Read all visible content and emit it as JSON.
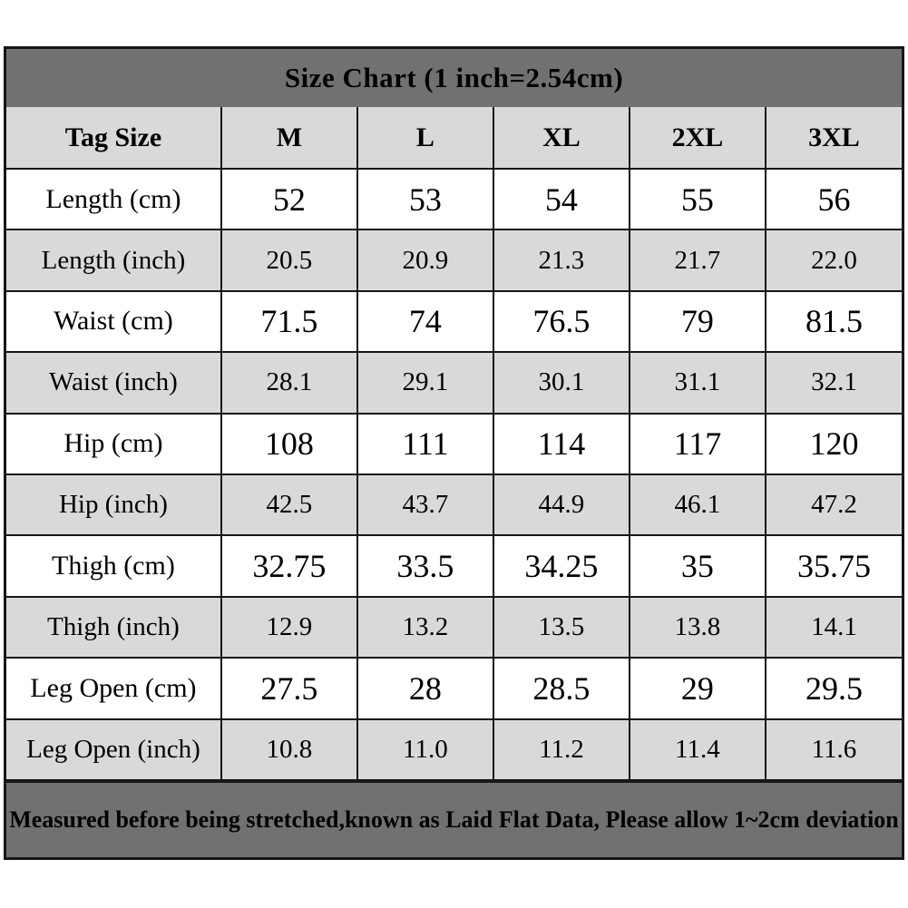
{
  "title": "Size Chart (1 inch=2.54cm)",
  "footer_note": "Measured before being stretched,known as Laid Flat Data, Please allow 1~2cm deviation",
  "chart_data": {
    "type": "table",
    "title": "Size Chart (1 inch=2.54cm)",
    "columns": [
      "Tag Size",
      "M",
      "L",
      "XL",
      "2XL",
      "3XL"
    ],
    "rows": [
      {
        "label": "Length (cm)",
        "values": [
          "52",
          "53",
          "54",
          "55",
          "56"
        ]
      },
      {
        "label": "Length (inch)",
        "values": [
          "20.5",
          "20.9",
          "21.3",
          "21.7",
          "22.0"
        ]
      },
      {
        "label": "Waist (cm)",
        "values": [
          "71.5",
          "74",
          "76.5",
          "79",
          "81.5"
        ]
      },
      {
        "label": "Waist (inch)",
        "values": [
          "28.1",
          "29.1",
          "30.1",
          "31.1",
          "32.1"
        ]
      },
      {
        "label": "Hip (cm)",
        "values": [
          "108",
          "111",
          "114",
          "117",
          "120"
        ]
      },
      {
        "label": "Hip (inch)",
        "values": [
          "42.5",
          "43.7",
          "44.9",
          "46.1",
          "47.2"
        ]
      },
      {
        "label": "Thigh (cm)",
        "values": [
          "32.75",
          "33.5",
          "34.25",
          "35",
          "35.75"
        ]
      },
      {
        "label": "Thigh (inch)",
        "values": [
          "12.9",
          "13.2",
          "13.5",
          "13.8",
          "14.1"
        ]
      },
      {
        "label": "Leg Open (cm)",
        "values": [
          "27.5",
          "28",
          "28.5",
          "29",
          "29.5"
        ]
      },
      {
        "label": "Leg Open (inch)",
        "values": [
          "10.8",
          "11.0",
          "11.2",
          "11.4",
          "11.6"
        ]
      }
    ],
    "footnote": "Measured before being stretched,known as Laid Flat Data, Please allow 1~2cm deviation"
  },
  "colors": {
    "band_bg": "#737070",
    "shaded_row_bg": "#d9d9d9",
    "plain_row_bg": "#ffffff",
    "border": "#161616",
    "text": "#000000"
  }
}
